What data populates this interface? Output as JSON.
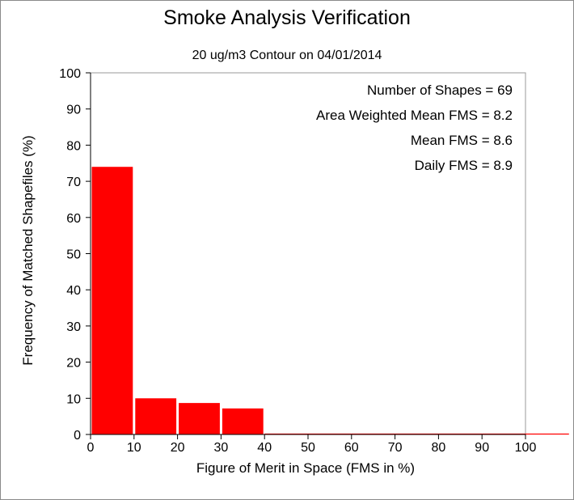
{
  "chart_data": {
    "type": "bar",
    "title": "Smoke Analysis Verification",
    "subtitle": "20 ug/m3 Contour on 04/01/2014",
    "xlabel": "Figure of Merit in Space (FMS in %)",
    "ylabel": "Frequency of Matched Shapefiles (%)",
    "xlim": [
      0,
      100
    ],
    "ylim": [
      0,
      100
    ],
    "xticks": [
      0,
      10,
      20,
      30,
      40,
      50,
      60,
      70,
      80,
      90,
      100
    ],
    "yticks": [
      0,
      10,
      20,
      30,
      40,
      50,
      60,
      70,
      80,
      90,
      100
    ],
    "bins": [
      {
        "x0": 0,
        "x1": 10,
        "value": 74
      },
      {
        "x0": 10,
        "x1": 20,
        "value": 10
      },
      {
        "x0": 20,
        "x1": 30,
        "value": 8.7
      },
      {
        "x0": 30,
        "x1": 40,
        "value": 7.2
      },
      {
        "x0": 40,
        "x1": 50,
        "value": 0
      },
      {
        "x0": 50,
        "x1": 60,
        "value": 0
      },
      {
        "x0": 60,
        "x1": 70,
        "value": 0
      },
      {
        "x0": 70,
        "x1": 80,
        "value": 0
      },
      {
        "x0": 80,
        "x1": 90,
        "value": 0
      },
      {
        "x0": 90,
        "x1": 100,
        "value": 0
      },
      {
        "x0": 100,
        "x1": 110,
        "value": 0
      }
    ],
    "bar_color": "#ff0000",
    "stats": [
      "Number of Shapes = 69",
      "Area Weighted Mean FMS = 8.2",
      "Mean FMS = 8.6",
      "Daily FMS = 8.9"
    ]
  }
}
